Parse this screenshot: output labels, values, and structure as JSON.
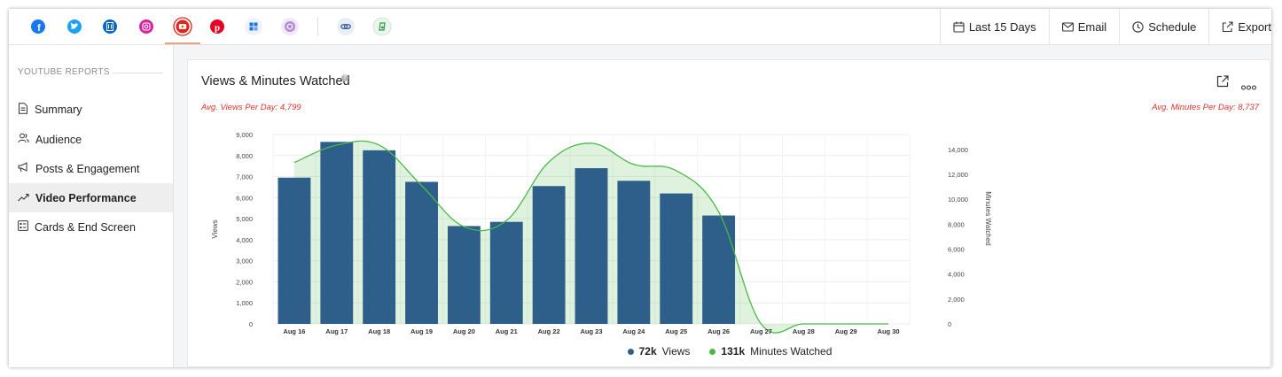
{
  "networks": [
    {
      "name": "facebook-icon",
      "color": "#1877f2",
      "selected": false
    },
    {
      "name": "twitter-icon",
      "color": "#1da1f2",
      "selected": false
    },
    {
      "name": "linkedin-page-icon",
      "color": "#0a66c2",
      "selected": false
    },
    {
      "name": "instagram-icon",
      "color": "#d6249f",
      "selected": false
    },
    {
      "name": "youtube-icon",
      "color": "#e62117",
      "selected": true
    },
    {
      "name": "pinterest-icon",
      "color": "#e60023",
      "selected": false
    },
    {
      "name": "google-business-icon",
      "color": "#1a73e8",
      "selected": false
    },
    {
      "name": "threads-icon",
      "color": "#8a3ab9",
      "selected": false
    },
    {
      "name": "link-icon",
      "color": "#3b5998",
      "selected": false
    },
    {
      "name": "booking-icon",
      "color": "#2e9e4a",
      "selected": false
    }
  ],
  "toolbar": {
    "date_range": "Last 15 Days",
    "email": "Email",
    "schedule": "Schedule",
    "export": "Export"
  },
  "sidebar": {
    "header": "YOUTUBE REPORTS",
    "items": [
      {
        "label": "Summary",
        "icon": "document-icon",
        "active": false
      },
      {
        "label": "Audience",
        "icon": "people-icon",
        "active": false
      },
      {
        "label": "Posts & Engagement",
        "icon": "megaphone-icon",
        "active": false
      },
      {
        "label": "Video Performance",
        "icon": "trend-icon",
        "active": true
      },
      {
        "label": "Cards & End Screen",
        "icon": "cards-icon",
        "active": false
      }
    ]
  },
  "card": {
    "title": "Views & Minutes Watched",
    "avg_views": "Avg. Views Per Day: 4,799",
    "avg_minutes": "Avg. Minutes Per Day: 8,737"
  },
  "legend": {
    "views_value": "72k",
    "views_label": "Views",
    "minutes_value": "131k",
    "minutes_label": "Minutes Watched"
  },
  "chart_data": {
    "type": "bar",
    "categories": [
      "Aug 16",
      "Aug 17",
      "Aug 18",
      "Aug 19",
      "Aug 20",
      "Aug 21",
      "Aug 22",
      "Aug 23",
      "Aug 24",
      "Aug 25",
      "Aug 26",
      "Aug 27",
      "Aug 28",
      "Aug 29",
      "Aug 30"
    ],
    "series": [
      {
        "name": "Views",
        "type": "bar",
        "axis": "left",
        "color": "#2d5f8a",
        "values": [
          6950,
          8650,
          8250,
          6750,
          4650,
          4850,
          6550,
          7400,
          6800,
          6200,
          5150,
          0,
          0,
          0,
          0
        ]
      },
      {
        "name": "Minutes Watched",
        "type": "area",
        "axis": "right",
        "color": "#4cb848",
        "values": [
          12950,
          14350,
          14350,
          11100,
          7800,
          8300,
          13000,
          14500,
          12800,
          12300,
          9000,
          0,
          0,
          0,
          0
        ]
      }
    ],
    "ylabel": "Views",
    "ylabel_right": "Minutes Watched",
    "ylim": [
      0,
      9000
    ],
    "yticks": [
      "0",
      "1,000",
      "2,000",
      "3,000",
      "4,000",
      "5,000",
      "6,000",
      "7,000",
      "8,000",
      "9,000"
    ],
    "ylim_right": [
      0,
      15200
    ],
    "yticks_right": [
      "0",
      "2,000",
      "4,000",
      "6,000",
      "8,000",
      "10,000",
      "12,000",
      "14,000"
    ],
    "grid": true
  }
}
